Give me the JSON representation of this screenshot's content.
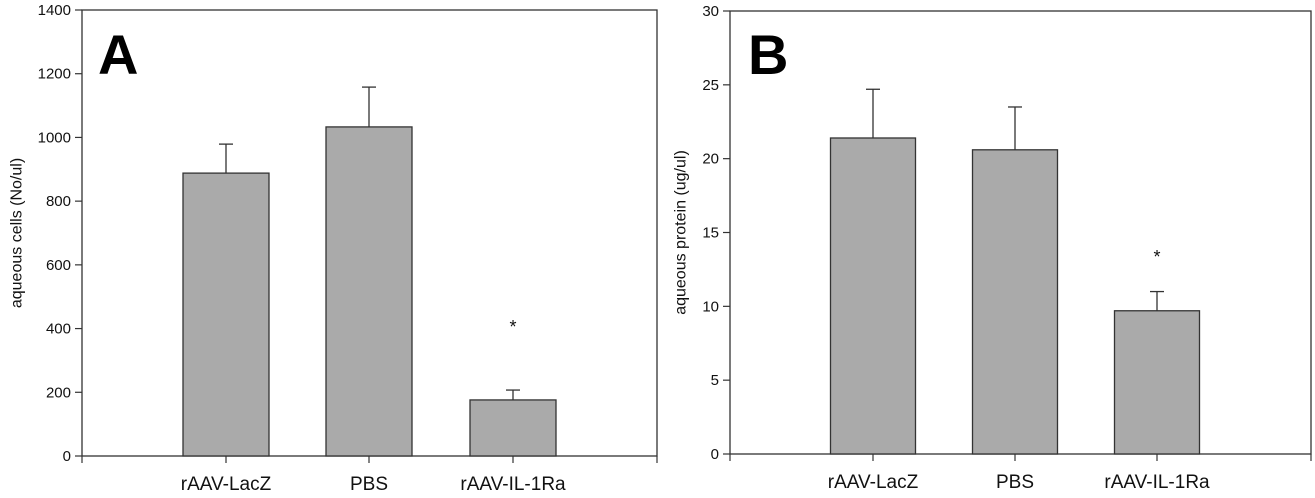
{
  "chart_data": [
    {
      "type": "bar",
      "panel_label": "A",
      "title": "",
      "xlabel": "",
      "ylabel": "aqueous cells (No/ul)",
      "ylim": [
        0,
        1400
      ],
      "yticks": [
        0,
        200,
        400,
        600,
        800,
        1000,
        1200,
        1400
      ],
      "categories": [
        "rAAV-LacZ",
        "PBS",
        "rAAV-IL-1Ra"
      ],
      "values": [
        888,
        1033,
        176
      ],
      "error_upper": [
        91,
        125,
        31
      ],
      "significance": [
        "",
        "",
        "*"
      ],
      "bar_color": "#aaaaaa",
      "grid": false
    },
    {
      "type": "bar",
      "panel_label": "B",
      "title": "",
      "xlabel": "",
      "ylabel": "aqueous protein (ug/ul)",
      "ylim": [
        0,
        30
      ],
      "yticks": [
        0,
        5,
        10,
        15,
        20,
        25,
        30
      ],
      "categories": [
        "rAAV-LacZ",
        "PBS",
        "rAAV-IL-1Ra"
      ],
      "values": [
        21.4,
        20.6,
        9.7
      ],
      "error_upper": [
        3.3,
        2.9,
        1.3
      ],
      "significance": [
        "",
        "",
        "*"
      ],
      "bar_color": "#aaaaaa",
      "grid": false
    }
  ]
}
